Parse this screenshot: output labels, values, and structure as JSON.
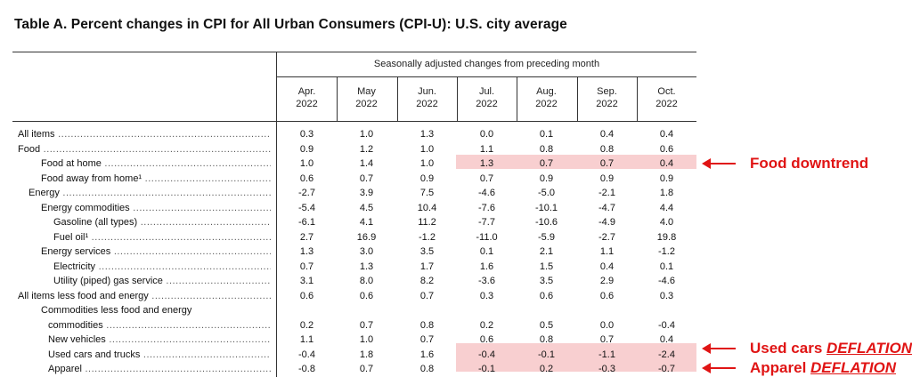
{
  "title": "Table A. Percent changes in CPI for All Urban Consumers (CPI-U): U.S. city average",
  "header": {
    "span_title": "Seasonally adjusted changes from preceding month",
    "columns": [
      {
        "month": "Apr.",
        "year": "2022"
      },
      {
        "month": "May",
        "year": "2022"
      },
      {
        "month": "Jun.",
        "year": "2022"
      },
      {
        "month": "Jul.",
        "year": "2022"
      },
      {
        "month": "Aug.",
        "year": "2022"
      },
      {
        "month": "Sep.",
        "year": "2022"
      },
      {
        "month": "Oct.",
        "year": "2022"
      }
    ]
  },
  "rows": [
    {
      "label": "All items",
      "values": [
        "0.3",
        "1.0",
        "1.3",
        "0.0",
        "0.1",
        "0.4",
        "0.4"
      ]
    },
    {
      "label": "Food",
      "values": [
        "0.9",
        "1.2",
        "1.0",
        "1.1",
        "0.8",
        "0.8",
        "0.6"
      ]
    },
    {
      "label": "Food at home",
      "values": [
        "1.0",
        "1.4",
        "1.0",
        "1.3",
        "0.7",
        "0.7",
        "0.4"
      ]
    },
    {
      "label": "Food away from home¹",
      "values": [
        "0.6",
        "0.7",
        "0.9",
        "0.7",
        "0.9",
        "0.9",
        "0.9"
      ]
    },
    {
      "label": "Energy",
      "values": [
        "-2.7",
        "3.9",
        "7.5",
        "-4.6",
        "-5.0",
        "-2.1",
        "1.8"
      ]
    },
    {
      "label": "Energy commodities",
      "values": [
        "-5.4",
        "4.5",
        "10.4",
        "-7.6",
        "-10.1",
        "-4.7",
        "4.4"
      ]
    },
    {
      "label": "Gasoline (all types)",
      "values": [
        "-6.1",
        "4.1",
        "11.2",
        "-7.7",
        "-10.6",
        "-4.9",
        "4.0"
      ]
    },
    {
      "label": "Fuel oil¹",
      "values": [
        "2.7",
        "16.9",
        "-1.2",
        "-11.0",
        "-5.9",
        "-2.7",
        "19.8"
      ]
    },
    {
      "label": "Energy services",
      "values": [
        "1.3",
        "3.0",
        "3.5",
        "0.1",
        "2.1",
        "1.1",
        "-1.2"
      ]
    },
    {
      "label": "Electricity",
      "values": [
        "0.7",
        "1.3",
        "1.7",
        "1.6",
        "1.5",
        "0.4",
        "0.1"
      ]
    },
    {
      "label": "Utility (piped) gas service",
      "values": [
        "3.1",
        "8.0",
        "8.2",
        "-3.6",
        "3.5",
        "2.9",
        "-4.6"
      ]
    },
    {
      "label": "All items less food and energy",
      "values": [
        "0.6",
        "0.6",
        "0.7",
        "0.3",
        "0.6",
        "0.6",
        "0.3"
      ]
    },
    {
      "label": "Commodities less food and energy",
      "values": [
        "",
        "",
        "",
        "",
        "",
        "",
        ""
      ]
    },
    {
      "label": "commodities",
      "values": [
        "0.2",
        "0.7",
        "0.8",
        "0.2",
        "0.5",
        "0.0",
        "-0.4"
      ]
    },
    {
      "label": "New vehicles",
      "values": [
        "1.1",
        "1.0",
        "0.7",
        "0.6",
        "0.8",
        "0.7",
        "0.4"
      ]
    },
    {
      "label": "Used cars and trucks",
      "values": [
        "-0.4",
        "1.8",
        "1.6",
        "-0.4",
        "-0.1",
        "-1.1",
        "-2.4"
      ]
    },
    {
      "label": "Apparel",
      "values": [
        "-0.8",
        "0.7",
        "0.8",
        "-0.1",
        "0.2",
        "-0.3",
        "-0.7"
      ]
    }
  ],
  "annotations": [
    {
      "text": "Food downtrend",
      "emphasis": ""
    },
    {
      "text": "Used cars ",
      "emphasis": "DEFLATION"
    },
    {
      "text": "Apparel ",
      "emphasis": "DEFLATION"
    }
  ],
  "colors": {
    "highlight": "#f8cfd0",
    "annotation": "#e01414"
  }
}
